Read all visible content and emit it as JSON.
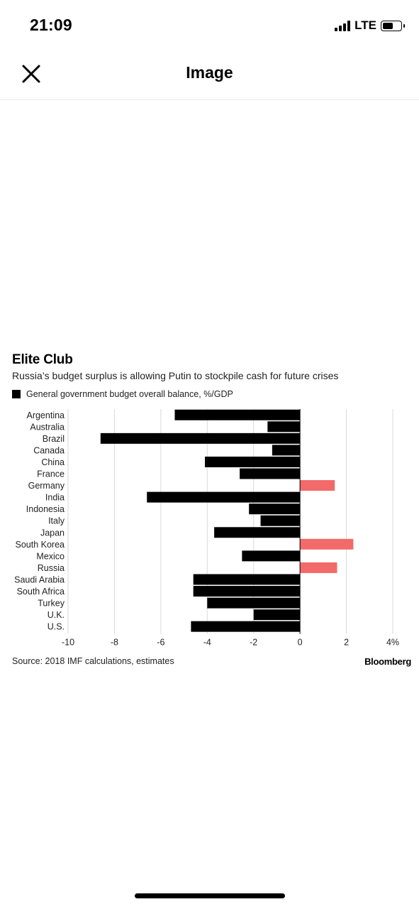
{
  "status_bar": {
    "time": "21:09",
    "network": "LTE",
    "battery_level": 0.65
  },
  "nav": {
    "title": "Image",
    "close_icon": "close-x-icon"
  },
  "figure": {
    "source": "Source: 2018 IMF calculations, estimates",
    "brand": "Bloomberg"
  },
  "chart_data": {
    "type": "bar",
    "orientation": "horizontal",
    "title": "Elite Club",
    "subtitle": "Russia’s budget surplus is allowing Putin to stockpile cash for future crises",
    "legend": [
      {
        "label": "General government budget overall balance, %/GDP",
        "color": "#000000"
      }
    ],
    "categories": [
      "Argentina",
      "Australia",
      "Brazil",
      "Canada",
      "China",
      "France",
      "Germany",
      "India",
      "Indonesia",
      "Italy",
      "Japan",
      "South Korea",
      "Mexico",
      "Russia",
      "Saudi Arabia",
      "South Africa",
      "Turkey",
      "U.K.",
      "U.S."
    ],
    "values": [
      -5.4,
      -1.4,
      -8.6,
      -1.2,
      -4.1,
      -2.6,
      1.5,
      -6.6,
      -2.2,
      -1.7,
      -3.7,
      2.3,
      -2.5,
      1.6,
      -4.6,
      -4.6,
      -4.0,
      -2.0,
      -4.7
    ],
    "xlim": [
      -10,
      4
    ],
    "x_ticks": [
      -10,
      -8,
      -6,
      -4,
      -2,
      0,
      2,
      4
    ],
    "x_tick_labels": [
      "-10",
      "-8",
      "-6",
      "-4",
      "-2",
      "0",
      "2",
      "4%"
    ],
    "negative_color": "#000000",
    "positive_color": "#f26a6a",
    "grid": true
  }
}
